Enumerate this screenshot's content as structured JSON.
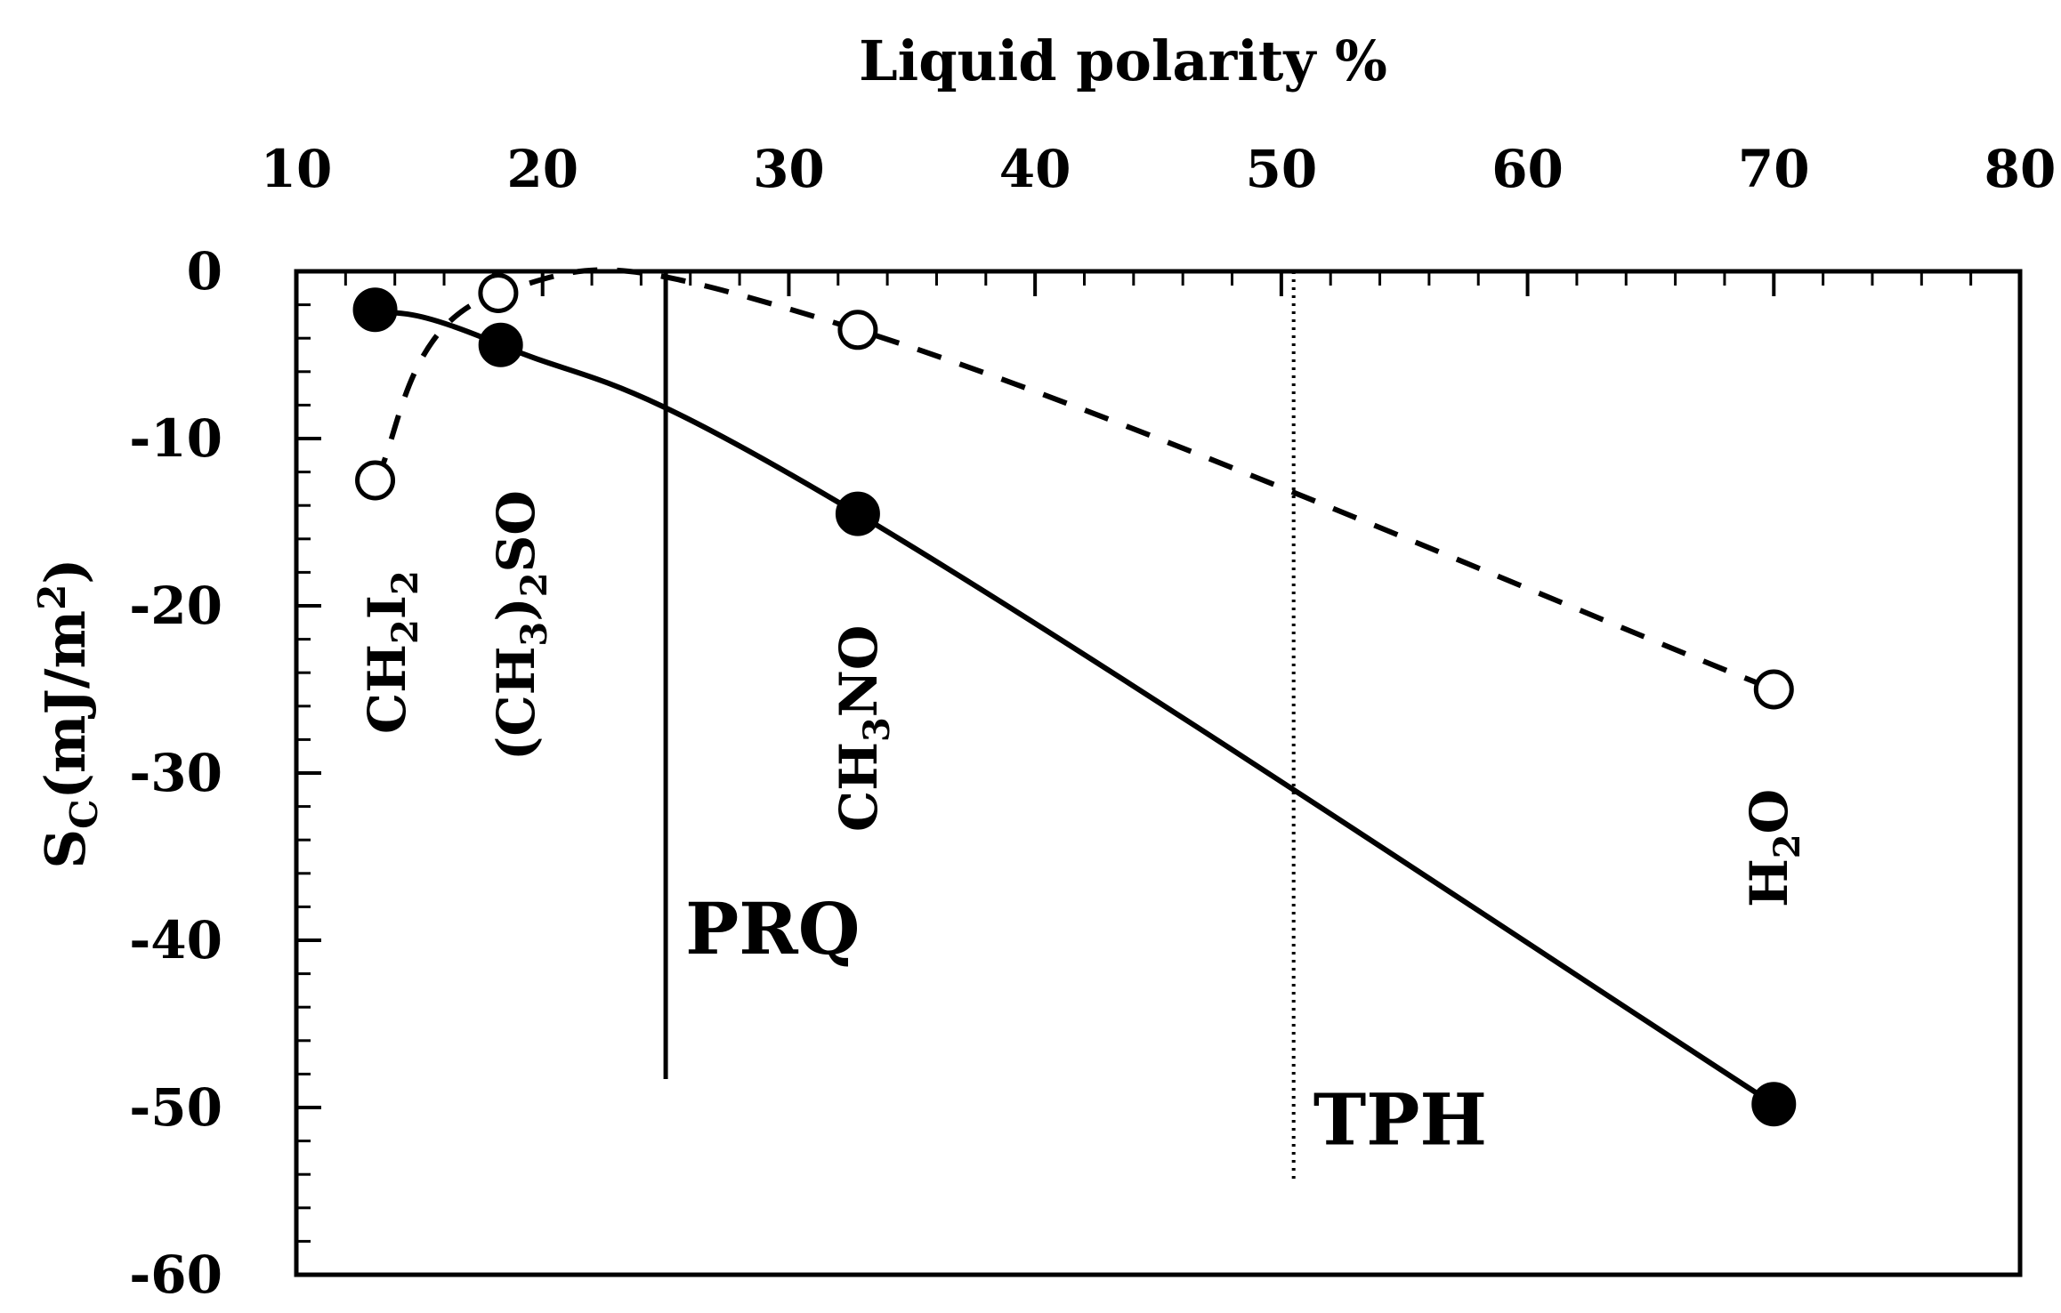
{
  "chart_data": {
    "type": "line",
    "xlabel": "Liquid polarity %",
    "ylabel": "S",
    "ylabel_subscript": "C",
    "ylabel_unit": "(mJ/m",
    "ylabel_unit_sup": "2",
    "ylabel_unit_close": ")",
    "xlim": [
      10,
      80
    ],
    "ylim": [
      -60,
      0
    ],
    "x_axis_position": "top",
    "x_ticks": [
      "10",
      "20",
      "30",
      "40",
      "50",
      "60",
      "70",
      "80"
    ],
    "y_ticks": [
      "0",
      "-10",
      "-20",
      "-30",
      "-40",
      "-50",
      "-60"
    ],
    "grid": false,
    "series": [
      {
        "style": "solid",
        "marker": "filled-circle",
        "color": "#000000",
        "points": [
          {
            "x": 13.2,
            "y": -2.3
          },
          {
            "x": 18.3,
            "y": -4.4
          },
          {
            "x": 32.8,
            "y": -14.5
          },
          {
            "x": 70.0,
            "y": -49.8
          }
        ]
      },
      {
        "style": "dashed",
        "marker": "open-circle",
        "color": "#000000",
        "points": [
          {
            "x": 13.2,
            "y": -12.5
          },
          {
            "x": 18.2,
            "y": -1.3
          },
          {
            "x": 32.8,
            "y": -3.5
          },
          {
            "x": 70.0,
            "y": -25.0
          }
        ]
      }
    ],
    "point_labels": [
      {
        "base": "CH",
        "sub1": "2",
        "mid": "I",
        "sub2": "2",
        "tail": "",
        "x": 13.2
      },
      {
        "base": "(CH",
        "sub1": "3",
        "mid": ")",
        "sub2": "2",
        "tail": "SO",
        "x": 18.2
      },
      {
        "base": "CH",
        "sub1": "3",
        "mid": "NO",
        "sub2": "",
        "tail": "",
        "x": 32.8
      },
      {
        "base": "H",
        "sub1": "2",
        "mid": "O",
        "sub2": "",
        "tail": "",
        "x": 70.0
      }
    ],
    "reference_lines": [
      {
        "label": "PRQ",
        "x": 25.0,
        "y_from": 0,
        "y_to": -48.3,
        "style": "solid"
      },
      {
        "label": "TPH",
        "x": 50.5,
        "y_from": 0,
        "y_to": -54.5,
        "style": "dotted"
      }
    ]
  }
}
